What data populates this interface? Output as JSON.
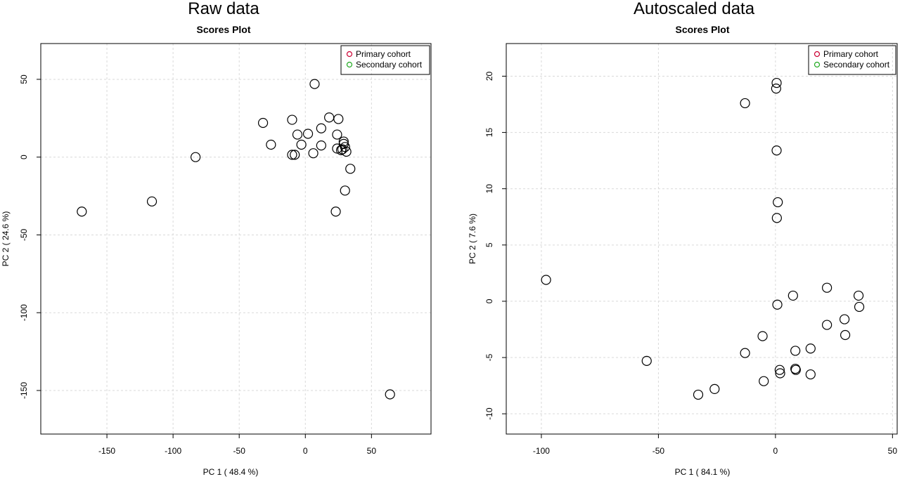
{
  "chart_data": [
    {
      "type": "scatter",
      "title": "Raw data",
      "subtitle": "Scores Plot",
      "xlabel": "PC 1 ( 48.4 %)",
      "ylabel": "PC 2 ( 24.6 %)",
      "xlim": [
        -200,
        95
      ],
      "ylim": [
        -178,
        73
      ],
      "xticks": [
        -150,
        -100,
        -50,
        0,
        50
      ],
      "yticks": [
        50,
        0,
        -50,
        -100,
        -150
      ],
      "grid": true,
      "legend_position": "top-right",
      "legend": [
        {
          "label": "Primary cohort",
          "color": "#cc0033"
        },
        {
          "label": "Secondary cohort",
          "color": "#22aa22"
        }
      ],
      "series": [
        {
          "points": [
            [
              -169,
              -35
            ],
            [
              -116,
              -28.5
            ],
            [
              -83,
              0
            ],
            [
              7,
              47
            ],
            [
              -32,
              22
            ],
            [
              -10,
              24
            ],
            [
              18,
              25.5
            ],
            [
              25,
              24.5
            ],
            [
              12,
              18.5
            ],
            [
              -6,
              14.5
            ],
            [
              2,
              15
            ],
            [
              24,
              14.5
            ],
            [
              -26,
              8
            ],
            [
              -3,
              8
            ],
            [
              12,
              7.5
            ],
            [
              29,
              10
            ],
            [
              29,
              8.5
            ],
            [
              30,
              6.5
            ],
            [
              24,
              5.5
            ],
            [
              27,
              4.5
            ],
            [
              31,
              3.5
            ],
            [
              28,
              5
            ],
            [
              -10,
              1.5
            ],
            [
              -8,
              1.5
            ],
            [
              6,
              2.5
            ],
            [
              34,
              -7.5
            ],
            [
              30,
              -21.5
            ],
            [
              23,
              -35
            ],
            [
              64,
              -152.5
            ]
          ]
        }
      ]
    },
    {
      "type": "scatter",
      "title": "Autoscaled data",
      "subtitle": "Scores Plot",
      "xlabel": "PC 1 ( 84.1 %)",
      "ylabel": "PC 2 ( 7.6 %)",
      "xlim": [
        -115,
        52
      ],
      "ylim": [
        -11.8,
        22.9
      ],
      "xticks": [
        -100,
        -50,
        0,
        50
      ],
      "yticks": [
        20,
        15,
        10,
        5,
        0,
        -5,
        -10
      ],
      "grid": true,
      "legend_position": "top-right",
      "legend": [
        {
          "label": "Primary cohort",
          "color": "#cc0033"
        },
        {
          "label": "Secondary cohort",
          "color": "#22aa22"
        }
      ],
      "series": [
        {
          "points": [
            [
              -98,
              1.9
            ],
            [
              -55,
              -5.3
            ],
            [
              -33,
              -8.3
            ],
            [
              -26,
              -7.8
            ],
            [
              -13,
              17.6
            ],
            [
              0.5,
              19.4
            ],
            [
              0.3,
              18.9
            ],
            [
              0.5,
              13.4
            ],
            [
              1,
              8.8
            ],
            [
              0.6,
              7.4
            ],
            [
              0.8,
              -0.3
            ],
            [
              7.5,
              0.5
            ],
            [
              22,
              1.2
            ],
            [
              35.5,
              0.5
            ],
            [
              35.8,
              -0.5
            ],
            [
              29.5,
              -1.6
            ],
            [
              22,
              -2.1
            ],
            [
              29.8,
              -3
            ],
            [
              -5.5,
              -3.1
            ],
            [
              -13,
              -4.6
            ],
            [
              8.5,
              -4.4
            ],
            [
              15,
              -4.2
            ],
            [
              1.8,
              -6.1
            ],
            [
              2,
              -6.4
            ],
            [
              8.5,
              -6
            ],
            [
              8.7,
              -6.1
            ],
            [
              15,
              -6.5
            ],
            [
              -5,
              -7.1
            ]
          ]
        }
      ]
    }
  ]
}
